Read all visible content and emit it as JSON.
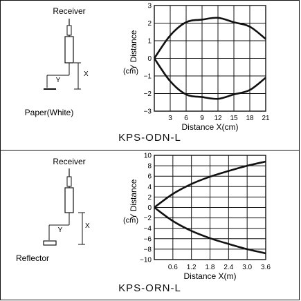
{
  "panels": [
    {
      "diagram": {
        "receiver_label": "Receiver",
        "target_label": "Paper(White)",
        "x_label": "X",
        "y_label": "Y"
      },
      "caption": "KPS-ODN-L"
    },
    {
      "diagram": {
        "receiver_label": "Receiver",
        "target_label": "Reflector",
        "x_label": "X",
        "y_label": "Y"
      },
      "caption": "KPS-ORN-L"
    }
  ],
  "chart_data": [
    {
      "type": "line",
      "xlabel": "Distance X(cm)",
      "ylabel": "Y Distance",
      "yunit": "(cm)",
      "xlim": [
        0,
        21
      ],
      "ylim": [
        -3,
        3
      ],
      "xticks": [
        3,
        6,
        9,
        12,
        15,
        18,
        21
      ],
      "yticks": [
        3,
        2,
        1,
        0,
        -1,
        -2,
        -3
      ],
      "ytick_labels": [
        "3",
        "2",
        "1",
        "0",
        "−1",
        "−2",
        "−3"
      ],
      "grid": true,
      "series": [
        {
          "x": [
            0,
            3,
            6,
            9,
            12,
            15,
            18,
            21
          ],
          "y": [
            0,
            1.3,
            2.05,
            2.2,
            2.3,
            2.05,
            1.8,
            1.1
          ]
        },
        {
          "x": [
            0,
            3,
            6,
            9,
            12,
            15,
            18,
            21
          ],
          "y": [
            0,
            -1.3,
            -2.05,
            -2.2,
            -2.3,
            -2.05,
            -1.8,
            -1.1
          ]
        }
      ]
    },
    {
      "type": "line",
      "xlabel": "Distance X(m)",
      "ylabel": "Y Distance",
      "yunit": "(cm)",
      "xlim": [
        0,
        3.6
      ],
      "ylim": [
        -10,
        10
      ],
      "xticks": [
        0.6,
        1.2,
        1.8,
        2.4,
        3.0,
        3.6
      ],
      "xtick_labels": [
        "0.6",
        "1.2",
        "1.8",
        "2.4",
        "3.0",
        "3.6"
      ],
      "yticks": [
        10,
        8,
        6,
        4,
        2,
        0,
        -2,
        -4,
        -6,
        -8,
        -10
      ],
      "ytick_labels": [
        "10",
        "8",
        "6",
        "4",
        "2",
        "0",
        "−2",
        "−4",
        "−6",
        "−8",
        "−10"
      ],
      "grid": true,
      "series": [
        {
          "x": [
            0,
            0.6,
            1.2,
            1.8,
            2.4,
            3.0,
            3.6
          ],
          "y": [
            0,
            2.6,
            4.5,
            5.9,
            7.0,
            8.0,
            8.8
          ]
        },
        {
          "x": [
            0,
            0.6,
            1.2,
            1.8,
            2.4,
            3.0,
            3.6
          ],
          "y": [
            0,
            -2.6,
            -4.5,
            -5.9,
            -7.0,
            -8.0,
            -8.8
          ]
        }
      ]
    }
  ]
}
